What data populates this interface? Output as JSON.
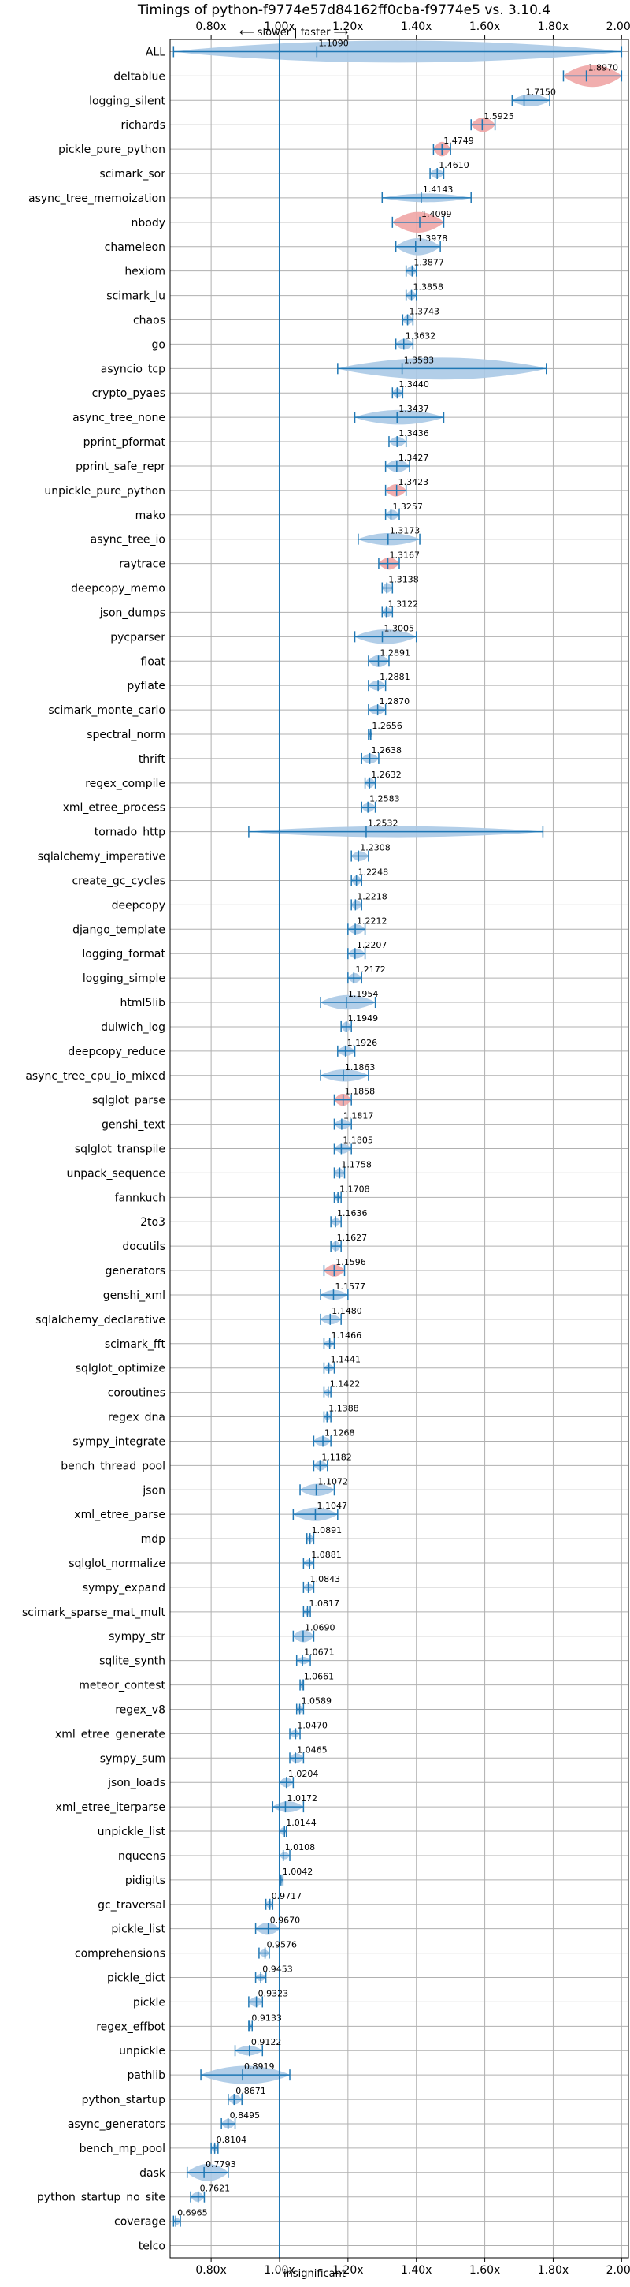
{
  "chart_data": {
    "type": "violin",
    "title": "Timings of python-f9774e57d84162ff0cba-f9774e5 vs. 3.10.4",
    "top_annotation": "⟵ slower | faster ⟶",
    "bottom_annotation": "insignificant",
    "xlim": [
      0.68,
      2.02
    ],
    "x_ticks": [
      0.8,
      1.0,
      1.2,
      1.4,
      1.6,
      1.8,
      2.0
    ],
    "x_tick_labels": [
      "0.80x",
      "1.00x",
      "1.20x",
      "1.40x",
      "1.60x",
      "1.80x",
      "2.00x"
    ],
    "reference_x": 1.0,
    "grid": true,
    "colors": {
      "violin": "#aac9e6",
      "slow_violin": "#f0a5a5",
      "line": "#1f77b4",
      "ref": "#1f77b4",
      "grid": "#b0b0b0"
    },
    "benchmarks": [
      {
        "name": "ALL",
        "value": 1.109,
        "label": "1.1090",
        "lo": 0.69,
        "hi": 2.0,
        "width": 0.9,
        "color": "#aac9e6"
      },
      {
        "name": "deltablue",
        "value": 1.897,
        "label": "1.8970",
        "lo": 1.83,
        "hi": 2.0,
        "width": 0.9,
        "color": "#f0a5a5"
      },
      {
        "name": "logging_silent",
        "value": 1.715,
        "label": "1.7150",
        "lo": 1.68,
        "hi": 1.79,
        "width": 0.5,
        "color": "#aac9e6"
      },
      {
        "name": "richards",
        "value": 1.5925,
        "label": "1.5925",
        "lo": 1.56,
        "hi": 1.63,
        "width": 0.6,
        "color": "#f0a5a5"
      },
      {
        "name": "pickle_pure_python",
        "value": 1.4749,
        "label": "1.4749",
        "lo": 1.45,
        "hi": 1.5,
        "width": 0.6,
        "color": "#f0a5a5"
      },
      {
        "name": "scimark_sor",
        "value": 1.461,
        "label": "1.4610",
        "lo": 1.44,
        "hi": 1.48,
        "width": 0.4,
        "color": "#aac9e6"
      },
      {
        "name": "async_tree_memoization",
        "value": 1.4143,
        "label": "1.4143",
        "lo": 1.3,
        "hi": 1.56,
        "width": 0.35,
        "color": "#aac9e6"
      },
      {
        "name": "nbody",
        "value": 1.4099,
        "label": "1.4099",
        "lo": 1.33,
        "hi": 1.48,
        "width": 0.85,
        "color": "#f0a5a5"
      },
      {
        "name": "chameleon",
        "value": 1.3978,
        "label": "1.3978",
        "lo": 1.34,
        "hi": 1.47,
        "width": 0.7,
        "color": "#aac9e6"
      },
      {
        "name": "hexiom",
        "value": 1.3877,
        "label": "1.3877",
        "lo": 1.37,
        "hi": 1.4,
        "width": 0.4,
        "color": "#aac9e6"
      },
      {
        "name": "scimark_lu",
        "value": 1.3858,
        "label": "1.3858",
        "lo": 1.37,
        "hi": 1.4,
        "width": 0.4,
        "color": "#aac9e6"
      },
      {
        "name": "chaos",
        "value": 1.3743,
        "label": "1.3743",
        "lo": 1.36,
        "hi": 1.39,
        "width": 0.4,
        "color": "#aac9e6"
      },
      {
        "name": "go",
        "value": 1.3632,
        "label": "1.3632",
        "lo": 1.34,
        "hi": 1.39,
        "width": 0.45,
        "color": "#aac9e6"
      },
      {
        "name": "asyncio_tcp",
        "value": 1.3583,
        "label": "1.3583",
        "lo": 1.17,
        "hi": 1.78,
        "width": 0.9,
        "color": "#aac9e6"
      },
      {
        "name": "crypto_pyaes",
        "value": 1.344,
        "label": "1.3440",
        "lo": 1.33,
        "hi": 1.36,
        "width": 0.4,
        "color": "#aac9e6"
      },
      {
        "name": "async_tree_none",
        "value": 1.3437,
        "label": "1.3437",
        "lo": 1.22,
        "hi": 1.48,
        "width": 0.6,
        "color": "#aac9e6"
      },
      {
        "name": "pprint_pformat",
        "value": 1.3436,
        "label": "1.3436",
        "lo": 1.32,
        "hi": 1.37,
        "width": 0.4,
        "color": "#aac9e6"
      },
      {
        "name": "pprint_safe_repr",
        "value": 1.3427,
        "label": "1.3427",
        "lo": 1.31,
        "hi": 1.38,
        "width": 0.5,
        "color": "#aac9e6"
      },
      {
        "name": "unpickle_pure_python",
        "value": 1.3423,
        "label": "1.3423",
        "lo": 1.31,
        "hi": 1.37,
        "width": 0.5,
        "color": "#f0a5a5"
      },
      {
        "name": "mako",
        "value": 1.3257,
        "label": "1.3257",
        "lo": 1.31,
        "hi": 1.35,
        "width": 0.4,
        "color": "#aac9e6"
      },
      {
        "name": "async_tree_io",
        "value": 1.3173,
        "label": "1.3173",
        "lo": 1.23,
        "hi": 1.41,
        "width": 0.5,
        "color": "#aac9e6"
      },
      {
        "name": "raytrace",
        "value": 1.3167,
        "label": "1.3167",
        "lo": 1.29,
        "hi": 1.35,
        "width": 0.5,
        "color": "#f0a5a5"
      },
      {
        "name": "deepcopy_memo",
        "value": 1.3138,
        "label": "1.3138",
        "lo": 1.3,
        "hi": 1.33,
        "width": 0.4,
        "color": "#aac9e6"
      },
      {
        "name": "json_dumps",
        "value": 1.3122,
        "label": "1.3122",
        "lo": 1.3,
        "hi": 1.33,
        "width": 0.4,
        "color": "#aac9e6"
      },
      {
        "name": "pycparser",
        "value": 1.3005,
        "label": "1.3005",
        "lo": 1.22,
        "hi": 1.4,
        "width": 0.6,
        "color": "#aac9e6"
      },
      {
        "name": "float",
        "value": 1.2891,
        "label": "1.2891",
        "lo": 1.26,
        "hi": 1.32,
        "width": 0.5,
        "color": "#aac9e6"
      },
      {
        "name": "pyflate",
        "value": 1.2881,
        "label": "1.2881",
        "lo": 1.26,
        "hi": 1.31,
        "width": 0.4,
        "color": "#aac9e6"
      },
      {
        "name": "scimark_monte_carlo",
        "value": 1.287,
        "label": "1.2870",
        "lo": 1.26,
        "hi": 1.31,
        "width": 0.4,
        "color": "#aac9e6"
      },
      {
        "name": "spectral_norm",
        "value": 1.2656,
        "label": "1.2656",
        "lo": 1.26,
        "hi": 1.27,
        "width": 0.3,
        "color": "#aac9e6"
      },
      {
        "name": "thrift",
        "value": 1.2638,
        "label": "1.2638",
        "lo": 1.24,
        "hi": 1.29,
        "width": 0.4,
        "color": "#aac9e6"
      },
      {
        "name": "regex_compile",
        "value": 1.2632,
        "label": "1.2632",
        "lo": 1.25,
        "hi": 1.28,
        "width": 0.4,
        "color": "#aac9e6"
      },
      {
        "name": "xml_etree_process",
        "value": 1.2583,
        "label": "1.2583",
        "lo": 1.24,
        "hi": 1.28,
        "width": 0.4,
        "color": "#aac9e6"
      },
      {
        "name": "tornado_http",
        "value": 1.2532,
        "label": "1.2532",
        "lo": 0.91,
        "hi": 1.77,
        "width": 0.45,
        "color": "#aac9e6"
      },
      {
        "name": "sqlalchemy_imperative",
        "value": 1.2308,
        "label": "1.2308",
        "lo": 1.21,
        "hi": 1.26,
        "width": 0.4,
        "color": "#aac9e6"
      },
      {
        "name": "create_gc_cycles",
        "value": 1.2248,
        "label": "1.2248",
        "lo": 1.21,
        "hi": 1.24,
        "width": 0.4,
        "color": "#aac9e6"
      },
      {
        "name": "deepcopy",
        "value": 1.2218,
        "label": "1.2218",
        "lo": 1.21,
        "hi": 1.24,
        "width": 0.4,
        "color": "#aac9e6"
      },
      {
        "name": "django_template",
        "value": 1.2212,
        "label": "1.2212",
        "lo": 1.2,
        "hi": 1.25,
        "width": 0.4,
        "color": "#aac9e6"
      },
      {
        "name": "logging_format",
        "value": 1.2207,
        "label": "1.2207",
        "lo": 1.2,
        "hi": 1.25,
        "width": 0.4,
        "color": "#aac9e6"
      },
      {
        "name": "logging_simple",
        "value": 1.2172,
        "label": "1.2172",
        "lo": 1.2,
        "hi": 1.24,
        "width": 0.4,
        "color": "#aac9e6"
      },
      {
        "name": "html5lib",
        "value": 1.1954,
        "label": "1.1954",
        "lo": 1.12,
        "hi": 1.28,
        "width": 0.6,
        "color": "#aac9e6"
      },
      {
        "name": "dulwich_log",
        "value": 1.1949,
        "label": "1.1949",
        "lo": 1.18,
        "hi": 1.21,
        "width": 0.4,
        "color": "#aac9e6"
      },
      {
        "name": "deepcopy_reduce",
        "value": 1.1926,
        "label": "1.1926",
        "lo": 1.17,
        "hi": 1.22,
        "width": 0.4,
        "color": "#aac9e6"
      },
      {
        "name": "async_tree_cpu_io_mixed",
        "value": 1.1863,
        "label": "1.1863",
        "lo": 1.12,
        "hi": 1.26,
        "width": 0.5,
        "color": "#aac9e6"
      },
      {
        "name": "sqlglot_parse",
        "value": 1.1858,
        "label": "1.1858",
        "lo": 1.16,
        "hi": 1.21,
        "width": 0.5,
        "color": "#f0a5a5"
      },
      {
        "name": "genshi_text",
        "value": 1.1817,
        "label": "1.1817",
        "lo": 1.16,
        "hi": 1.21,
        "width": 0.4,
        "color": "#aac9e6"
      },
      {
        "name": "sqlglot_transpile",
        "value": 1.1805,
        "label": "1.1805",
        "lo": 1.16,
        "hi": 1.21,
        "width": 0.4,
        "color": "#aac9e6"
      },
      {
        "name": "unpack_sequence",
        "value": 1.1758,
        "label": "1.1758",
        "lo": 1.16,
        "hi": 1.19,
        "width": 0.4,
        "color": "#aac9e6"
      },
      {
        "name": "fannkuch",
        "value": 1.1708,
        "label": "1.1708",
        "lo": 1.16,
        "hi": 1.18,
        "width": 0.3,
        "color": "#aac9e6"
      },
      {
        "name": "2to3",
        "value": 1.1636,
        "label": "1.1636",
        "lo": 1.15,
        "hi": 1.18,
        "width": 0.3,
        "color": "#aac9e6"
      },
      {
        "name": "docutils",
        "value": 1.1627,
        "label": "1.1627",
        "lo": 1.15,
        "hi": 1.18,
        "width": 0.4,
        "color": "#aac9e6"
      },
      {
        "name": "generators",
        "value": 1.1596,
        "label": "1.1596",
        "lo": 1.13,
        "hi": 1.19,
        "width": 0.5,
        "color": "#f0a5a5"
      },
      {
        "name": "genshi_xml",
        "value": 1.1577,
        "label": "1.1577",
        "lo": 1.12,
        "hi": 1.2,
        "width": 0.4,
        "color": "#aac9e6"
      },
      {
        "name": "sqlalchemy_declarative",
        "value": 1.148,
        "label": "1.1480",
        "lo": 1.12,
        "hi": 1.18,
        "width": 0.4,
        "color": "#aac9e6"
      },
      {
        "name": "scimark_fft",
        "value": 1.1466,
        "label": "1.1466",
        "lo": 1.13,
        "hi": 1.16,
        "width": 0.3,
        "color": "#aac9e6"
      },
      {
        "name": "sqlglot_optimize",
        "value": 1.1441,
        "label": "1.1441",
        "lo": 1.13,
        "hi": 1.16,
        "width": 0.3,
        "color": "#aac9e6"
      },
      {
        "name": "coroutines",
        "value": 1.1422,
        "label": "1.1422",
        "lo": 1.13,
        "hi": 1.15,
        "width": 0.3,
        "color": "#aac9e6"
      },
      {
        "name": "regex_dna",
        "value": 1.1388,
        "label": "1.1388",
        "lo": 1.13,
        "hi": 1.15,
        "width": 0.3,
        "color": "#aac9e6"
      },
      {
        "name": "sympy_integrate",
        "value": 1.1268,
        "label": "1.1268",
        "lo": 1.1,
        "hi": 1.15,
        "width": 0.4,
        "color": "#aac9e6"
      },
      {
        "name": "bench_thread_pool",
        "value": 1.1182,
        "label": "1.1182",
        "lo": 1.1,
        "hi": 1.14,
        "width": 0.4,
        "color": "#aac9e6"
      },
      {
        "name": "json",
        "value": 1.1072,
        "label": "1.1072",
        "lo": 1.06,
        "hi": 1.16,
        "width": 0.5,
        "color": "#aac9e6"
      },
      {
        "name": "xml_etree_parse",
        "value": 1.1047,
        "label": "1.1047",
        "lo": 1.04,
        "hi": 1.17,
        "width": 0.55,
        "color": "#aac9e6"
      },
      {
        "name": "mdp",
        "value": 1.0891,
        "label": "1.0891",
        "lo": 1.08,
        "hi": 1.1,
        "width": 0.3,
        "color": "#aac9e6"
      },
      {
        "name": "sqlglot_normalize",
        "value": 1.0881,
        "label": "1.0881",
        "lo": 1.07,
        "hi": 1.1,
        "width": 0.3,
        "color": "#aac9e6"
      },
      {
        "name": "sympy_expand",
        "value": 1.0843,
        "label": "1.0843",
        "lo": 1.07,
        "hi": 1.1,
        "width": 0.3,
        "color": "#aac9e6"
      },
      {
        "name": "scimark_sparse_mat_mult",
        "value": 1.0817,
        "label": "1.0817",
        "lo": 1.07,
        "hi": 1.09,
        "width": 0.3,
        "color": "#aac9e6"
      },
      {
        "name": "sympy_str",
        "value": 1.069,
        "label": "1.0690",
        "lo": 1.04,
        "hi": 1.1,
        "width": 0.5,
        "color": "#aac9e6"
      },
      {
        "name": "sqlite_synth",
        "value": 1.0671,
        "label": "1.0671",
        "lo": 1.05,
        "hi": 1.09,
        "width": 0.3,
        "color": "#aac9e6"
      },
      {
        "name": "meteor_contest",
        "value": 1.0661,
        "label": "1.0661",
        "lo": 1.06,
        "hi": 1.07,
        "width": 0.3,
        "color": "#aac9e6"
      },
      {
        "name": "regex_v8",
        "value": 1.0589,
        "label": "1.0589",
        "lo": 1.05,
        "hi": 1.07,
        "width": 0.3,
        "color": "#aac9e6"
      },
      {
        "name": "xml_etree_generate",
        "value": 1.047,
        "label": "1.0470",
        "lo": 1.03,
        "hi": 1.06,
        "width": 0.3,
        "color": "#aac9e6"
      },
      {
        "name": "sympy_sum",
        "value": 1.0465,
        "label": "1.0465",
        "lo": 1.03,
        "hi": 1.07,
        "width": 0.4,
        "color": "#aac9e6"
      },
      {
        "name": "json_loads",
        "value": 1.0204,
        "label": "1.0204",
        "lo": 1.0,
        "hi": 1.04,
        "width": 0.4,
        "color": "#aac9e6"
      },
      {
        "name": "xml_etree_iterparse",
        "value": 1.0172,
        "label": "1.0172",
        "lo": 0.98,
        "hi": 1.07,
        "width": 0.45,
        "color": "#aac9e6"
      },
      {
        "name": "unpickle_list",
        "value": 1.0144,
        "label": "1.0144",
        "lo": 1.0,
        "hi": 1.02,
        "width": 0.3,
        "color": "#aac9e6"
      },
      {
        "name": "nqueens",
        "value": 1.0108,
        "label": "1.0108",
        "lo": 1.0,
        "hi": 1.03,
        "width": 0.3,
        "color": "#aac9e6"
      },
      {
        "name": "pidigits",
        "value": 1.0042,
        "label": "1.0042",
        "lo": 1.0,
        "hi": 1.01,
        "width": 0.3,
        "color": "#aac9e6"
      },
      {
        "name": "gc_traversal",
        "value": 0.9717,
        "label": "0.9717",
        "lo": 0.96,
        "hi": 0.98,
        "width": 0.3,
        "color": "#aac9e6"
      },
      {
        "name": "pickle_list",
        "value": 0.967,
        "label": "0.9670",
        "lo": 0.93,
        "hi": 1.0,
        "width": 0.5,
        "color": "#aac9e6"
      },
      {
        "name": "comprehensions",
        "value": 0.9576,
        "label": "0.9576",
        "lo": 0.94,
        "hi": 0.97,
        "width": 0.3,
        "color": "#aac9e6"
      },
      {
        "name": "pickle_dict",
        "value": 0.9453,
        "label": "0.9453",
        "lo": 0.93,
        "hi": 0.96,
        "width": 0.3,
        "color": "#aac9e6"
      },
      {
        "name": "pickle",
        "value": 0.9323,
        "label": "0.9323",
        "lo": 0.91,
        "hi": 0.95,
        "width": 0.4,
        "color": "#aac9e6"
      },
      {
        "name": "regex_effbot",
        "value": 0.9133,
        "label": "0.9133",
        "lo": 0.91,
        "hi": 0.92,
        "width": 0.25,
        "color": "#aac9e6"
      },
      {
        "name": "unpickle",
        "value": 0.9122,
        "label": "0.9122",
        "lo": 0.87,
        "hi": 0.95,
        "width": 0.4,
        "color": "#aac9e6"
      },
      {
        "name": "pathlib",
        "value": 0.8919,
        "label": "0.8919",
        "lo": 0.77,
        "hi": 1.03,
        "width": 0.75,
        "color": "#aac9e6"
      },
      {
        "name": "python_startup",
        "value": 0.8671,
        "label": "0.8671",
        "lo": 0.85,
        "hi": 0.89,
        "width": 0.4,
        "color": "#aac9e6"
      },
      {
        "name": "async_generators",
        "value": 0.8495,
        "label": "0.8495",
        "lo": 0.83,
        "hi": 0.87,
        "width": 0.4,
        "color": "#aac9e6"
      },
      {
        "name": "bench_mp_pool",
        "value": 0.8104,
        "label": "0.8104",
        "lo": 0.8,
        "hi": 0.82,
        "width": 0.3,
        "color": "#aac9e6"
      },
      {
        "name": "dask",
        "value": 0.7793,
        "label": "0.7793",
        "lo": 0.73,
        "hi": 0.85,
        "width": 0.7,
        "color": "#aac9e6"
      },
      {
        "name": "python_startup_no_site",
        "value": 0.7621,
        "label": "0.7621",
        "lo": 0.74,
        "hi": 0.78,
        "width": 0.4,
        "color": "#aac9e6"
      },
      {
        "name": "coverage",
        "value": 0.6965,
        "label": "0.6965",
        "lo": 0.69,
        "hi": 0.71,
        "width": 0.3,
        "color": "#aac9e6"
      },
      {
        "name": "telco",
        "value": null,
        "label": "",
        "lo": null,
        "hi": null,
        "width": 0,
        "color": "#aac9e6"
      }
    ]
  }
}
